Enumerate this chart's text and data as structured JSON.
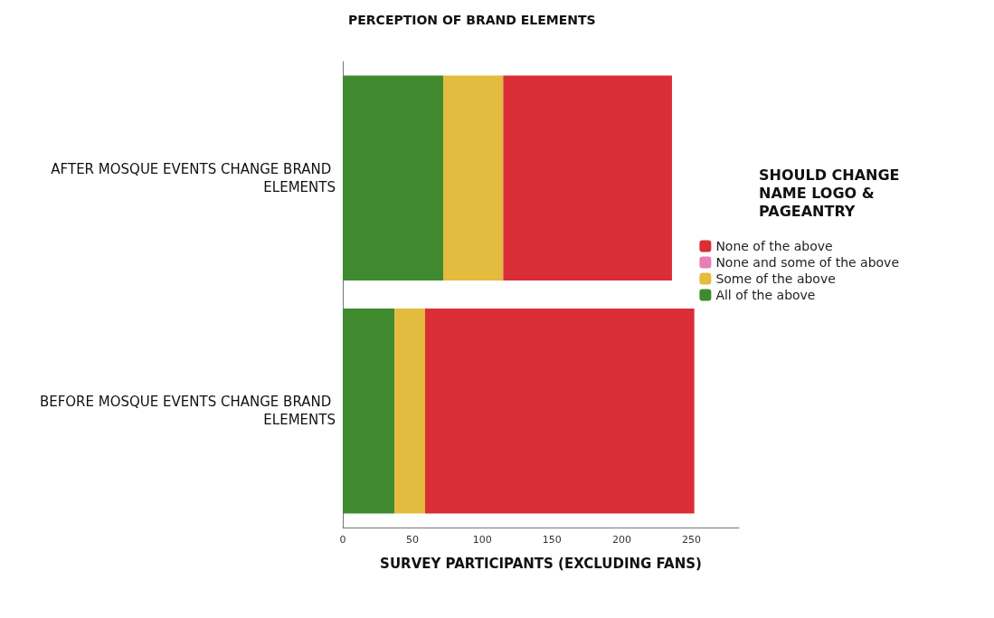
{
  "chart_data": {
    "type": "bar",
    "orientation": "horizontal",
    "stacked": true,
    "title": "PERCEPTION OF BRAND ELEMENTS",
    "xlabel": "SURVEY PARTICIPANTS (EXCLUDING FANS)",
    "legend_title": "SHOULD CHANGE NAME LOGO & PAGEANTRY",
    "categories": [
      "AFTER MOSQUE EVENTS CHANGE BRAND ELEMENTS",
      "BEFORE MOSQUE EVENTS CHANGE BRAND ELEMENTS"
    ],
    "series": [
      {
        "name": "All of the above",
        "color": "#3f8a2f",
        "values": [
          72,
          37
        ]
      },
      {
        "name": "Some of the above",
        "color": "#e3bb3e",
        "values": [
          43,
          22
        ]
      },
      {
        "name": "None and some of the above",
        "color": "#e57fb5",
        "values": [
          0,
          0
        ]
      },
      {
        "name": "None of the above",
        "color": "#d92e35",
        "values": [
          121,
          193
        ]
      }
    ],
    "xlim": [
      0,
      284
    ],
    "xticks": [
      0,
      50,
      100,
      150,
      200,
      250
    ],
    "grid": false,
    "legend": "right"
  }
}
